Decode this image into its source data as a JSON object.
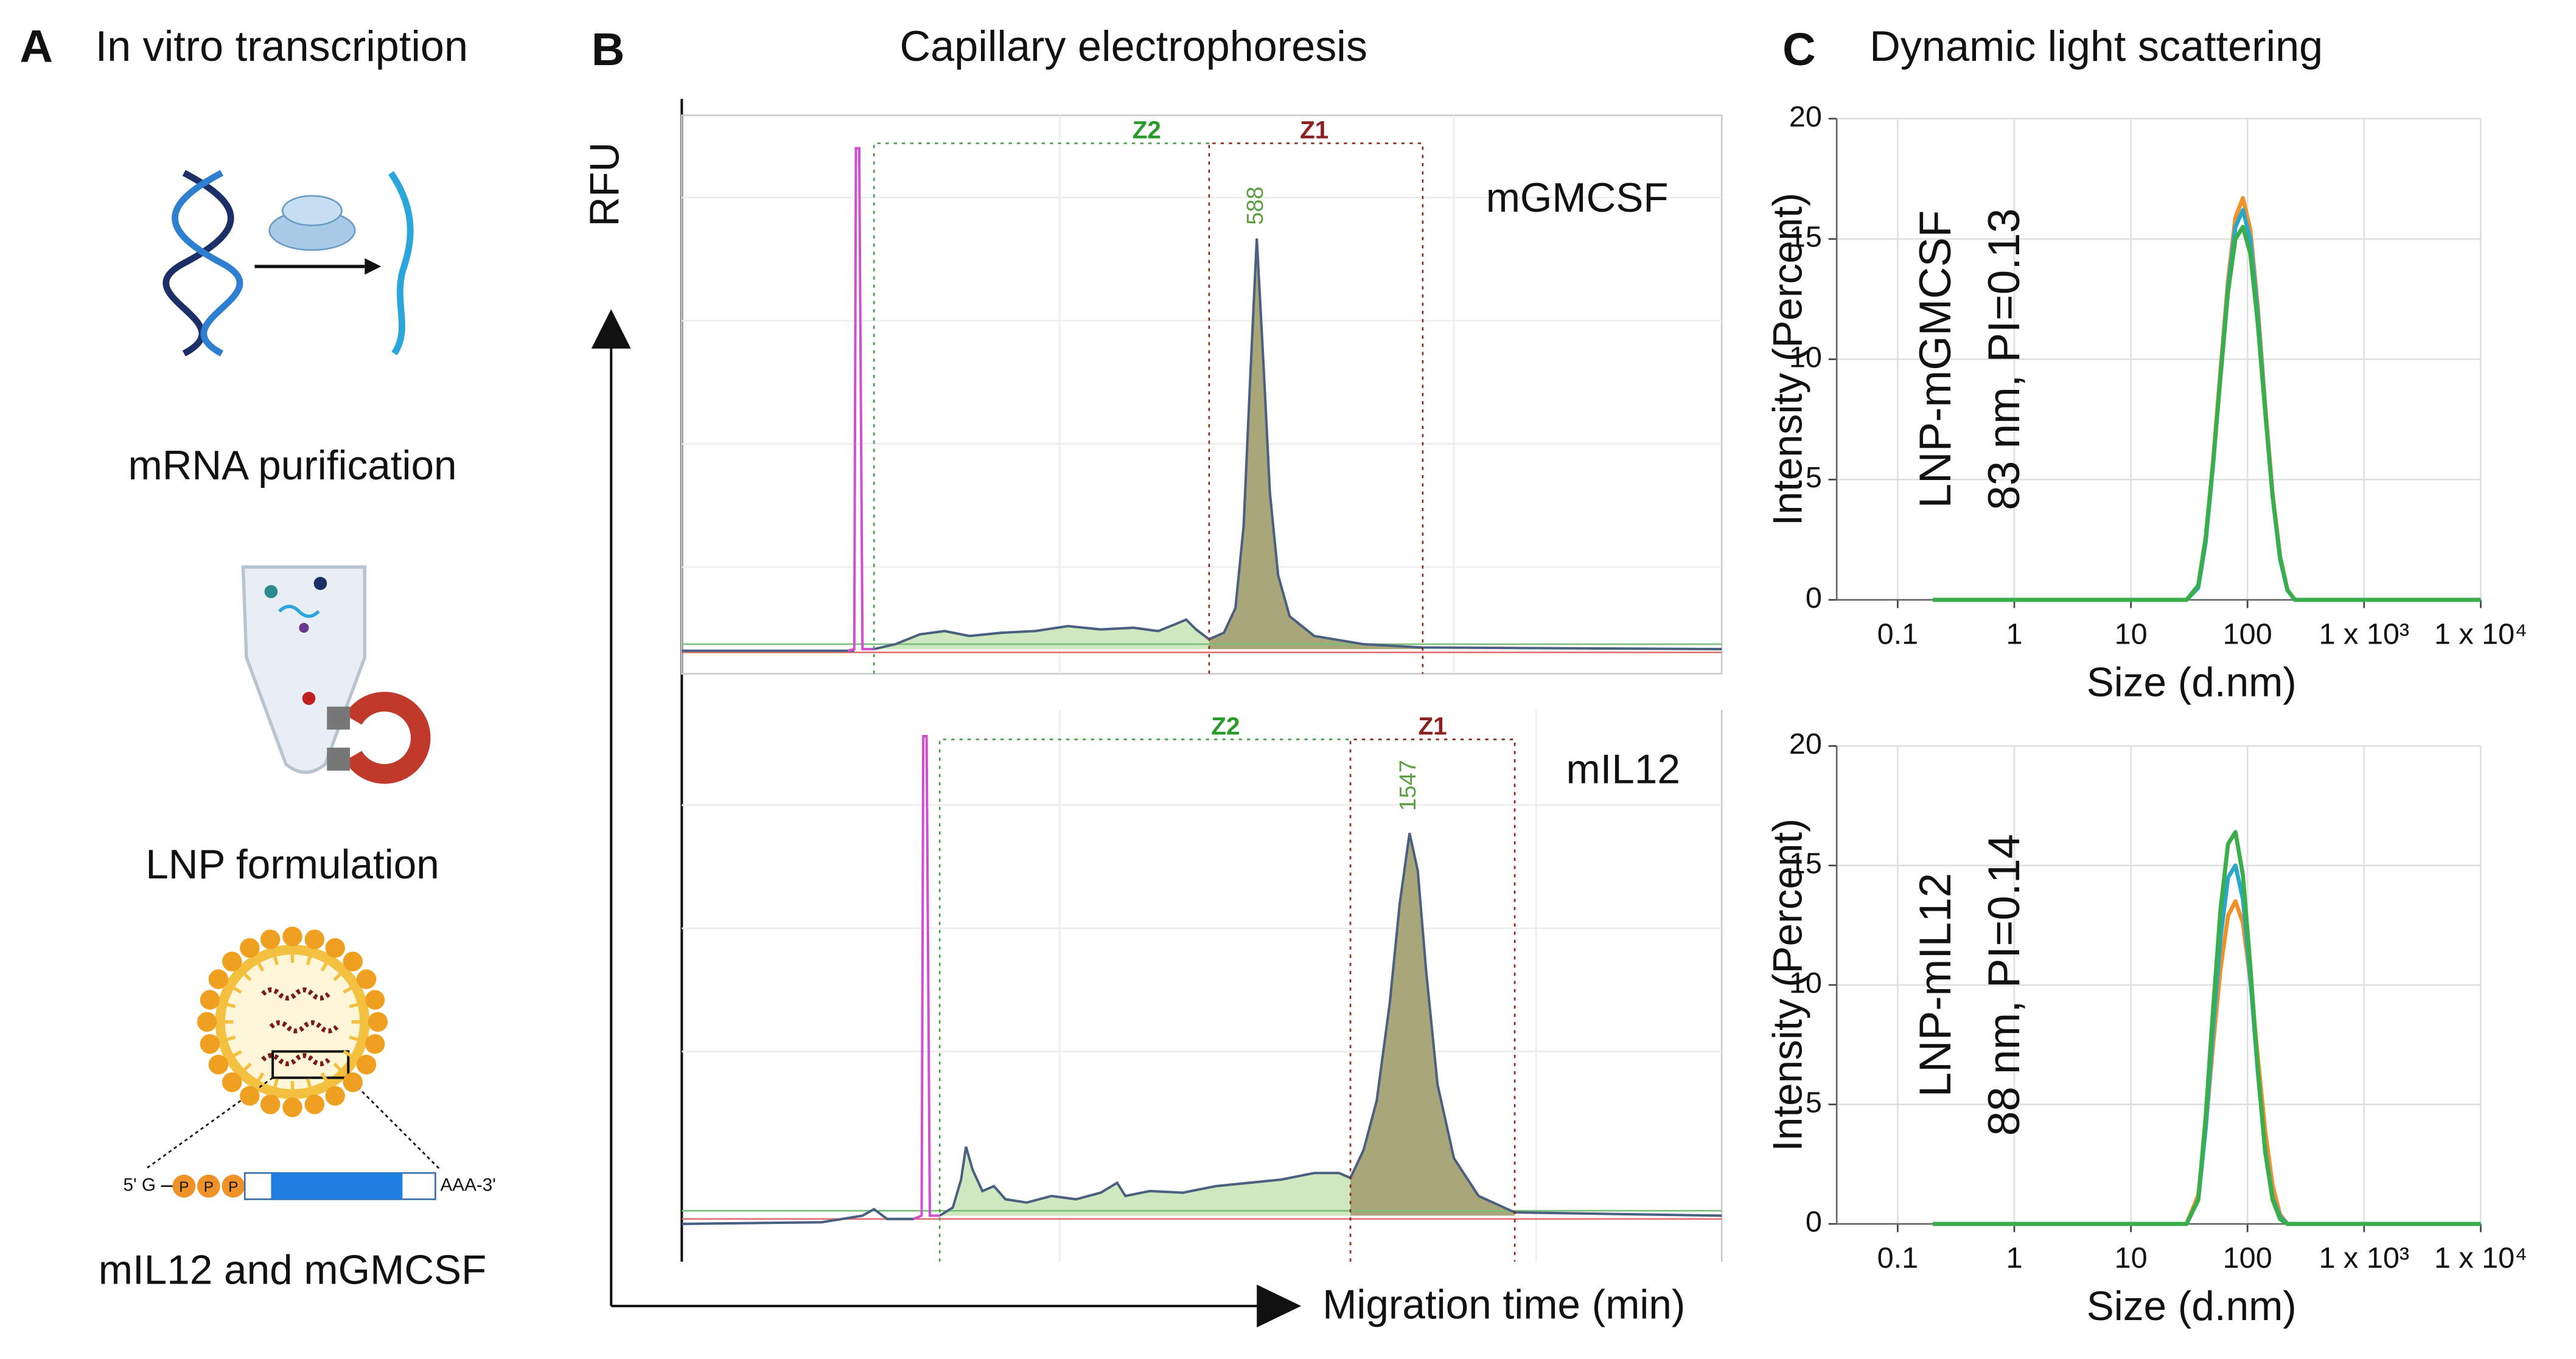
{
  "panel_a": {
    "letter": "A",
    "title": "In vitro transcription",
    "steps": [
      "mRNA purification",
      "LNP formulation",
      "mIL12 and mGMCSF"
    ],
    "construct": {
      "left": "5' G",
      "cap": [
        "P",
        "P",
        "P"
      ],
      "right": "AAA-3'"
    }
  },
  "panel_b": {
    "letter": "B",
    "title": "Capillary electrophoresis",
    "y_label": "RFU",
    "x_label": "Migration time (min)",
    "lanes": [
      {
        "name": "mGMCSF",
        "peak_label": 588,
        "zones": [
          "Z2",
          "Z1"
        ]
      },
      {
        "name": "mIL12",
        "peak_label": 1547,
        "zones": [
          "Z2",
          "Z1"
        ]
      }
    ]
  },
  "panel_c": {
    "letter": "C",
    "title": "Dynamic light scattering"
  },
  "chart_data": [
    {
      "type": "line",
      "y_label": "Intensity (Percent)",
      "x_label": "Size (d.nm)",
      "annotations": [
        "LNP-mGMCSF",
        "83 nm, PI=0.13"
      ],
      "log_x": true,
      "grid": true,
      "xlim": [
        0.03,
        10000
      ],
      "ylim": [
        0,
        20
      ],
      "xticks": [
        0.1,
        1,
        10,
        100,
        {
          "value": 1000,
          "label": "1 x 10³"
        },
        {
          "value": 10000,
          "label": "1 x 10⁴"
        }
      ],
      "yticks": [
        0,
        5,
        10,
        15,
        20
      ],
      "x": [
        0.2,
        30,
        37.8,
        43.8,
        50.7,
        58.8,
        68.1,
        78.8,
        91.3,
        105.7,
        122.4,
        141.8,
        164.2,
        190.1,
        220.2,
        255,
        10000
      ],
      "series": [
        {
          "color": "#f0922a",
          "values": [
            0,
            0,
            0.5,
            2.5,
            5.8,
            9.6,
            13.3,
            15.9,
            16.7,
            15.4,
            12.2,
            8.1,
            4.4,
            1.8,
            0.4,
            0,
            0
          ]
        },
        {
          "color": "#2aa6c8",
          "values": [
            0,
            0,
            0.5,
            2.4,
            5.6,
            9.4,
            13,
            15.5,
            16.2,
            15,
            11.9,
            7.9,
            4.3,
            1.7,
            0.4,
            0,
            0
          ]
        },
        {
          "color": "#3aae4a",
          "values": [
            0,
            0,
            0.6,
            2.6,
            5.7,
            9.3,
            12.8,
            15,
            15.5,
            14.4,
            11.5,
            7.8,
            4.3,
            1.8,
            0.4,
            0,
            0
          ]
        }
      ]
    },
    {
      "type": "line",
      "y_label": "Intensity (Percent)",
      "x_label": "Size (d.nm)",
      "annotations": [
        "LNP-mIL12",
        "88 nm, PI=0.14"
      ],
      "log_x": true,
      "grid": true,
      "xlim": [
        0.03,
        10000
      ],
      "ylim": [
        0,
        20
      ],
      "xticks": [
        0.1,
        1,
        10,
        100,
        {
          "value": 1000,
          "label": "1 x 10³"
        },
        {
          "value": 10000,
          "label": "1 x 10⁴"
        }
      ],
      "yticks": [
        0,
        5,
        10,
        15,
        20
      ],
      "x": [
        0.2,
        30,
        37.8,
        43.8,
        50.7,
        58.8,
        68.1,
        78.8,
        91.3,
        105.7,
        122.4,
        141.8,
        164.2,
        190.1,
        220.2,
        255,
        10000
      ],
      "series": [
        {
          "color": "#f0922a",
          "values": [
            0,
            0,
            1.2,
            4,
            7.5,
            10.7,
            12.9,
            13.5,
            12.6,
            10.2,
            7,
            3.9,
            1.6,
            0.4,
            0,
            0,
            0
          ]
        },
        {
          "color": "#2aa6c8",
          "values": [
            0,
            0,
            1,
            4,
            8.2,
            12,
            14.5,
            15,
            13.6,
            10.3,
            6.4,
            3.1,
            1.1,
            0.3,
            0,
            0,
            0
          ]
        },
        {
          "color": "#3aae4a",
          "values": [
            0,
            0,
            1,
            4.5,
            9,
            13.2,
            15.9,
            16.4,
            14.6,
            10.8,
            6.5,
            3,
            1,
            0.2,
            0,
            0,
            0
          ]
        }
      ]
    }
  ]
}
